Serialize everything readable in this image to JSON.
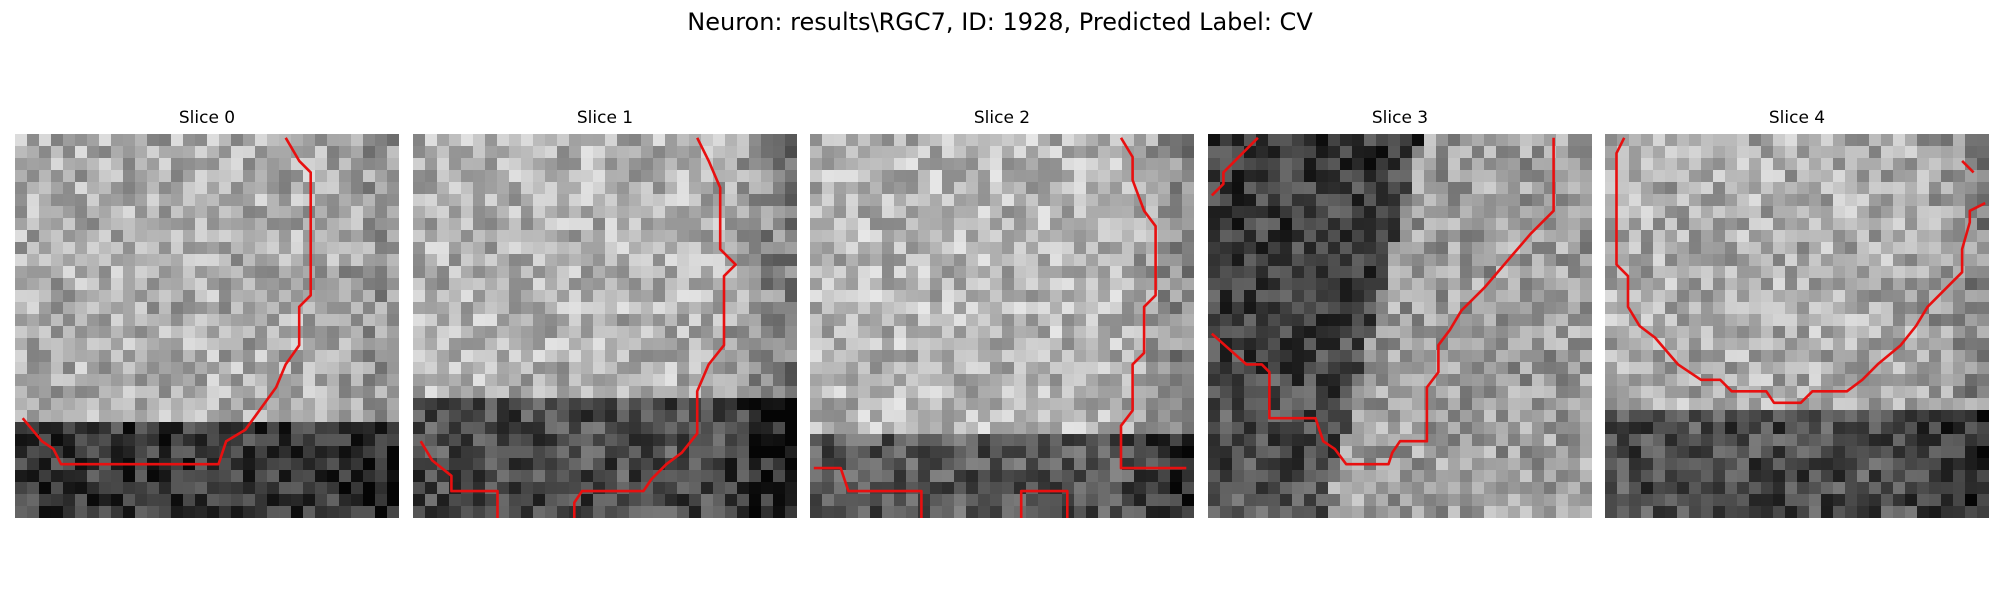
{
  "figure": {
    "title": "Neuron: results\\RGC7, ID: 1928, Predicted Label: CV"
  },
  "slices": [
    {
      "title": "Slice 0",
      "brightness": {
        "top": 0.68,
        "bottom": 0.22,
        "transition_row": 0.76,
        "right_dark": 0.1
      },
      "contours": [
        [
          [
            0.705,
            0.01
          ],
          [
            0.74,
            0.07
          ],
          [
            0.77,
            0.1
          ],
          [
            0.77,
            0.42
          ],
          [
            0.74,
            0.45
          ],
          [
            0.74,
            0.55
          ],
          [
            0.705,
            0.6
          ],
          [
            0.68,
            0.66
          ],
          [
            0.6,
            0.77
          ],
          [
            0.55,
            0.8
          ],
          [
            0.53,
            0.86
          ],
          [
            0.12,
            0.86
          ],
          [
            0.1,
            0.82
          ],
          [
            0.07,
            0.8
          ],
          [
            0.02,
            0.74
          ]
        ]
      ]
    },
    {
      "title": "Slice 1",
      "brightness": {
        "top": 0.7,
        "bottom": 0.3,
        "transition_row": 0.68,
        "right_dark": 0.22
      },
      "contours": [
        [
          [
            0.74,
            0.01
          ],
          [
            0.77,
            0.07
          ],
          [
            0.8,
            0.14
          ],
          [
            0.8,
            0.3
          ],
          [
            0.84,
            0.34
          ],
          [
            0.81,
            0.37
          ],
          [
            0.81,
            0.55
          ],
          [
            0.77,
            0.6
          ],
          [
            0.74,
            0.67
          ],
          [
            0.74,
            0.78
          ],
          [
            0.7,
            0.83
          ],
          [
            0.66,
            0.86
          ],
          [
            0.62,
            0.9
          ],
          [
            0.6,
            0.93
          ],
          [
            0.44,
            0.93
          ],
          [
            0.42,
            0.96
          ],
          [
            0.42,
            1.0
          ]
        ],
        [
          [
            0.02,
            0.8
          ],
          [
            0.05,
            0.85
          ],
          [
            0.1,
            0.89
          ],
          [
            0.1,
            0.93
          ],
          [
            0.22,
            0.93
          ],
          [
            0.22,
            1.0
          ]
        ]
      ]
    },
    {
      "title": "Slice 2",
      "brightness": {
        "top": 0.72,
        "bottom": 0.35,
        "transition_row": 0.8,
        "right_dark": 0.2
      },
      "contours": [
        [
          [
            0.81,
            0.01
          ],
          [
            0.84,
            0.06
          ],
          [
            0.84,
            0.12
          ],
          [
            0.87,
            0.2
          ],
          [
            0.9,
            0.24
          ],
          [
            0.9,
            0.42
          ],
          [
            0.87,
            0.45
          ],
          [
            0.87,
            0.57
          ],
          [
            0.84,
            0.6
          ],
          [
            0.84,
            0.72
          ],
          [
            0.81,
            0.76
          ],
          [
            0.81,
            0.87
          ],
          [
            0.98,
            0.87
          ]
        ],
        [
          [
            0.01,
            0.87
          ],
          [
            0.08,
            0.87
          ],
          [
            0.1,
            0.93
          ],
          [
            0.29,
            0.93
          ],
          [
            0.29,
            1.0
          ]
        ],
        [
          [
            0.55,
            1.0
          ],
          [
            0.55,
            0.93
          ],
          [
            0.67,
            0.93
          ],
          [
            0.67,
            1.0
          ]
        ]
      ]
    },
    {
      "title": "Slice 3",
      "brightness": {
        "top": 0.3,
        "bottom": 0.5,
        "transition_row": 0.5,
        "right_dark": 0.0
      },
      "contours": [
        [
          [
            0.9,
            0.01
          ],
          [
            0.9,
            0.2
          ],
          [
            0.84,
            0.26
          ],
          [
            0.78,
            0.33
          ],
          [
            0.72,
            0.4
          ],
          [
            0.66,
            0.46
          ],
          [
            0.63,
            0.51
          ],
          [
            0.6,
            0.55
          ],
          [
            0.6,
            0.62
          ],
          [
            0.57,
            0.66
          ],
          [
            0.57,
            0.8
          ],
          [
            0.5,
            0.8
          ],
          [
            0.48,
            0.83
          ],
          [
            0.47,
            0.86
          ],
          [
            0.36,
            0.86
          ],
          [
            0.33,
            0.82
          ],
          [
            0.3,
            0.8
          ],
          [
            0.28,
            0.74
          ],
          [
            0.16,
            0.74
          ],
          [
            0.16,
            0.62
          ],
          [
            0.14,
            0.6
          ],
          [
            0.1,
            0.6
          ],
          [
            0.01,
            0.52
          ]
        ],
        [
          [
            0.01,
            0.16
          ],
          [
            0.04,
            0.13
          ],
          [
            0.04,
            0.1
          ],
          [
            0.13,
            0.01
          ]
        ]
      ]
    },
    {
      "title": "Slice 4",
      "brightness": {
        "top": 0.68,
        "bottom": 0.3,
        "transition_row": 0.72,
        "right_dark": 0.15
      },
      "contours": [
        [
          [
            0.05,
            0.01
          ],
          [
            0.03,
            0.05
          ],
          [
            0.03,
            0.34
          ],
          [
            0.06,
            0.37
          ],
          [
            0.06,
            0.45
          ],
          [
            0.09,
            0.5
          ],
          [
            0.13,
            0.53
          ],
          [
            0.19,
            0.6
          ],
          [
            0.25,
            0.64
          ],
          [
            0.3,
            0.64
          ],
          [
            0.33,
            0.67
          ],
          [
            0.42,
            0.67
          ],
          [
            0.44,
            0.7
          ],
          [
            0.51,
            0.7
          ],
          [
            0.54,
            0.67
          ],
          [
            0.63,
            0.67
          ],
          [
            0.67,
            0.64
          ],
          [
            0.71,
            0.6
          ],
          [
            0.77,
            0.55
          ],
          [
            0.81,
            0.5
          ],
          [
            0.84,
            0.45
          ],
          [
            0.89,
            0.4
          ],
          [
            0.93,
            0.36
          ],
          [
            0.93,
            0.3
          ],
          [
            0.95,
            0.23
          ],
          [
            0.95,
            0.2
          ],
          [
            0.99,
            0.18
          ]
        ],
        [
          [
            0.93,
            0.07
          ],
          [
            0.96,
            0.1
          ]
        ]
      ]
    }
  ],
  "colors": {
    "contour": "#e81010"
  }
}
